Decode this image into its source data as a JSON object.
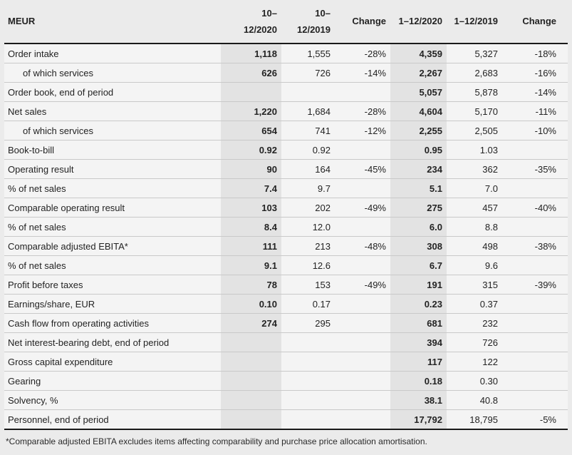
{
  "colors": {
    "page_bg": "#ebebeb",
    "row_bg": "#f4f4f4",
    "highlight_col_bg": "#e3e3e3",
    "heavy_rule": "#1a1a1a",
    "row_divider": "#c9c9c9"
  },
  "table": {
    "columns": [
      {
        "label": "MEUR",
        "highlight": false
      },
      {
        "label": "10–\n12/2020",
        "highlight": true
      },
      {
        "label": "10–\n12/2019",
        "highlight": false
      },
      {
        "label": "Change",
        "highlight": false
      },
      {
        "label": "1–12/2020",
        "highlight": true
      },
      {
        "label": "1–12/2019",
        "highlight": false
      },
      {
        "label": "Change",
        "highlight": false
      }
    ],
    "rows": [
      {
        "label": "Order intake",
        "indent": false,
        "values": [
          "1,118",
          "1,555",
          "-28%",
          "4,359",
          "5,327",
          "-18%"
        ]
      },
      {
        "label": "of which services",
        "indent": true,
        "values": [
          "626",
          "726",
          "-14%",
          "2,267",
          "2,683",
          "-16%"
        ]
      },
      {
        "label": "Order book, end of period",
        "indent": false,
        "values": [
          "",
          "",
          "",
          "5,057",
          "5,878",
          "-14%"
        ]
      },
      {
        "label": "Net sales",
        "indent": false,
        "values": [
          "1,220",
          "1,684",
          "-28%",
          "4,604",
          "5,170",
          "-11%"
        ]
      },
      {
        "label": "of which services",
        "indent": true,
        "values": [
          "654",
          "741",
          "-12%",
          "2,255",
          "2,505",
          "-10%"
        ]
      },
      {
        "label": "Book-to-bill",
        "indent": false,
        "values": [
          "0.92",
          "0.92",
          "",
          "0.95",
          "1.03",
          ""
        ]
      },
      {
        "label": "Operating result",
        "indent": false,
        "values": [
          "90",
          "164",
          "-45%",
          "234",
          "362",
          "-35%"
        ]
      },
      {
        "label": "% of net sales",
        "indent": false,
        "values": [
          "7.4",
          "9.7",
          "",
          "5.1",
          "7.0",
          ""
        ]
      },
      {
        "label": "Comparable operating result",
        "indent": false,
        "values": [
          "103",
          "202",
          "-49%",
          "275",
          "457",
          "-40%"
        ]
      },
      {
        "label": "% of net sales",
        "indent": false,
        "values": [
          "8.4",
          "12.0",
          "",
          "6.0",
          "8.8",
          ""
        ]
      },
      {
        "label": "Comparable adjusted EBITA*",
        "indent": false,
        "values": [
          "111",
          "213",
          "-48%",
          "308",
          "498",
          "-38%"
        ]
      },
      {
        "label": "% of net sales",
        "indent": false,
        "values": [
          "9.1",
          "12.6",
          "",
          "6.7",
          "9.6",
          ""
        ]
      },
      {
        "label": "Profit before taxes",
        "indent": false,
        "values": [
          "78",
          "153",
          "-49%",
          "191",
          "315",
          "-39%"
        ]
      },
      {
        "label": "Earnings/share, EUR",
        "indent": false,
        "values": [
          "0.10",
          "0.17",
          "",
          "0.23",
          "0.37",
          ""
        ]
      },
      {
        "label": "Cash flow from operating activities",
        "indent": false,
        "values": [
          "274",
          "295",
          "",
          "681",
          "232",
          ""
        ]
      },
      {
        "label": "Net interest-bearing debt, end of period",
        "indent": false,
        "values": [
          "",
          "",
          "",
          "394",
          "726",
          ""
        ]
      },
      {
        "label": "Gross capital expenditure",
        "indent": false,
        "values": [
          "",
          "",
          "",
          "117",
          "122",
          ""
        ]
      },
      {
        "label": "Gearing",
        "indent": false,
        "values": [
          "",
          "",
          "",
          "0.18",
          "0.30",
          ""
        ]
      },
      {
        "label": "Solvency, %",
        "indent": false,
        "values": [
          "",
          "",
          "",
          "38.1",
          "40.8",
          ""
        ]
      },
      {
        "label": "Personnel, end of period",
        "indent": false,
        "values": [
          "",
          "",
          "",
          "17,792",
          "18,795",
          "-5%"
        ]
      }
    ],
    "footnote": "*Comparable adjusted EBITA excludes items affecting comparability and purchase price allocation amortisation."
  }
}
